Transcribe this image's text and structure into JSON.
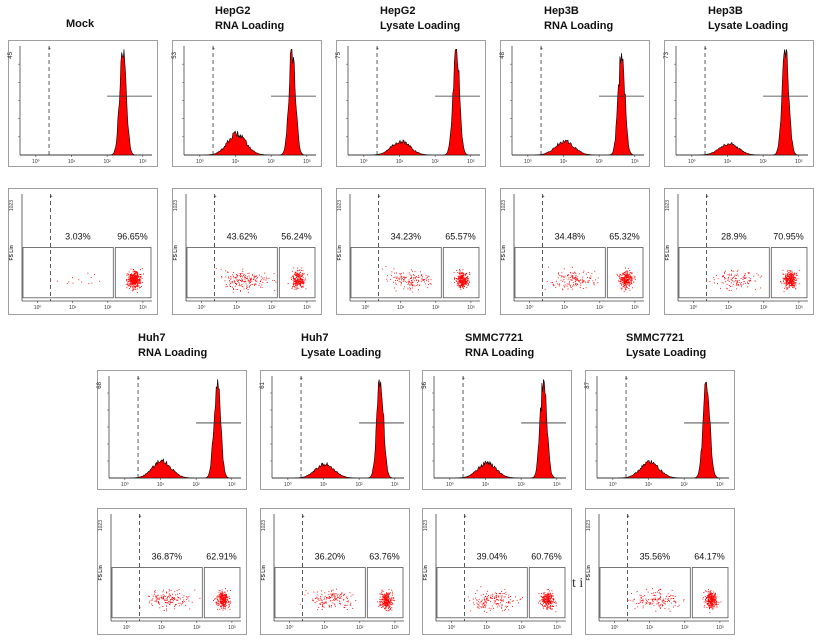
{
  "stray_text": "t i",
  "axis": {
    "x_ticks": [
      "10⁰",
      "10¹",
      "10²",
      "10³"
    ],
    "y_label": "FS Lin",
    "y_max": "1023"
  },
  "colors": {
    "fill": "#ff0000",
    "outline": "#000000",
    "frame": "#888888",
    "gate": "#333333"
  },
  "samples": [
    {
      "name": "Mock",
      "condition": "",
      "hist_y_max": "45",
      "pct_left": "3.03%",
      "pct_right": "96.65%",
      "hist_peaks": [
        {
          "x": 0.78,
          "h": 1.0,
          "w": 0.025
        }
      ]
    },
    {
      "name": "HepG2",
      "condition": "RNA Loading",
      "hist_y_max": "53",
      "pct_left": "43.62%",
      "pct_right": "56.24%",
      "hist_peaks": [
        {
          "x": 0.4,
          "h": 0.2,
          "w": 0.07
        },
        {
          "x": 0.82,
          "h": 1.0,
          "w": 0.025
        }
      ]
    },
    {
      "name": "HepG2",
      "condition": "Lysate Loading",
      "hist_y_max": "75",
      "pct_left": "34.23%",
      "pct_right": "65.57%",
      "hist_peaks": [
        {
          "x": 0.4,
          "h": 0.13,
          "w": 0.07
        },
        {
          "x": 0.82,
          "h": 1.0,
          "w": 0.025
        }
      ]
    },
    {
      "name": "Hep3B",
      "condition": "RNA Loading",
      "hist_y_max": "48",
      "pct_left": "34.48%",
      "pct_right": "65.32%",
      "hist_peaks": [
        {
          "x": 0.4,
          "h": 0.13,
          "w": 0.07
        },
        {
          "x": 0.83,
          "h": 1.0,
          "w": 0.025
        }
      ]
    },
    {
      "name": "Hep3B",
      "condition": "Lysate Loading",
      "hist_y_max": "73",
      "pct_left": "28.9%",
      "pct_right": "70.95%",
      "hist_peaks": [
        {
          "x": 0.4,
          "h": 0.11,
          "w": 0.07
        },
        {
          "x": 0.83,
          "h": 1.0,
          "w": 0.025
        }
      ]
    },
    {
      "name": "Huh7",
      "condition": "RNA Loading",
      "hist_y_max": "68",
      "pct_left": "36.87%",
      "pct_right": "62.91%",
      "hist_peaks": [
        {
          "x": 0.4,
          "h": 0.17,
          "w": 0.07
        },
        {
          "x": 0.82,
          "h": 1.0,
          "w": 0.025
        }
      ]
    },
    {
      "name": "Huh7",
      "condition": "Lysate Loading",
      "hist_y_max": "61",
      "pct_left": "36.20%",
      "pct_right": "63.76%",
      "hist_peaks": [
        {
          "x": 0.4,
          "h": 0.14,
          "w": 0.07
        },
        {
          "x": 0.82,
          "h": 1.0,
          "w": 0.025
        }
      ]
    },
    {
      "name": "SMMC7721",
      "condition": "RNA Loading",
      "hist_y_max": "56",
      "pct_left": "39.04%",
      "pct_right": "60.76%",
      "hist_peaks": [
        {
          "x": 0.4,
          "h": 0.15,
          "w": 0.07
        },
        {
          "x": 0.83,
          "h": 1.0,
          "w": 0.025
        }
      ]
    },
    {
      "name": "SMMC7721",
      "condition": "Lysate Loading",
      "hist_y_max": "87",
      "pct_left": "35.56%",
      "pct_right": "64.17%",
      "hist_peaks": [
        {
          "x": 0.4,
          "h": 0.16,
          "w": 0.07
        },
        {
          "x": 0.83,
          "h": 1.0,
          "w": 0.025
        }
      ]
    }
  ]
}
